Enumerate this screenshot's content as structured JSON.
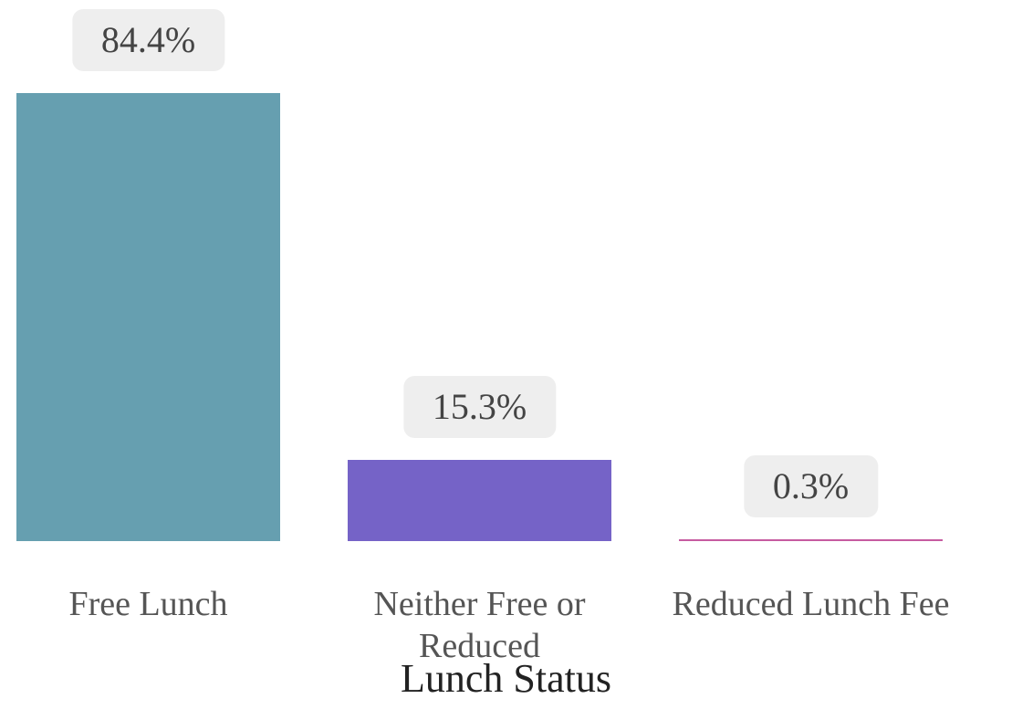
{
  "chart_data": {
    "type": "bar",
    "x_label": "Lunch Status",
    "categories": [
      "Free Lunch",
      "Neither Free or Reduced",
      "Reduced Lunch Fee"
    ],
    "values": [
      84.4,
      15.3,
      0.3
    ],
    "value_labels": [
      "84.4%",
      "15.3%",
      "0.3%"
    ],
    "colors": [
      "#669fb0",
      "#7563c7",
      "#c65ba0"
    ],
    "ylim": [
      0,
      100
    ]
  }
}
